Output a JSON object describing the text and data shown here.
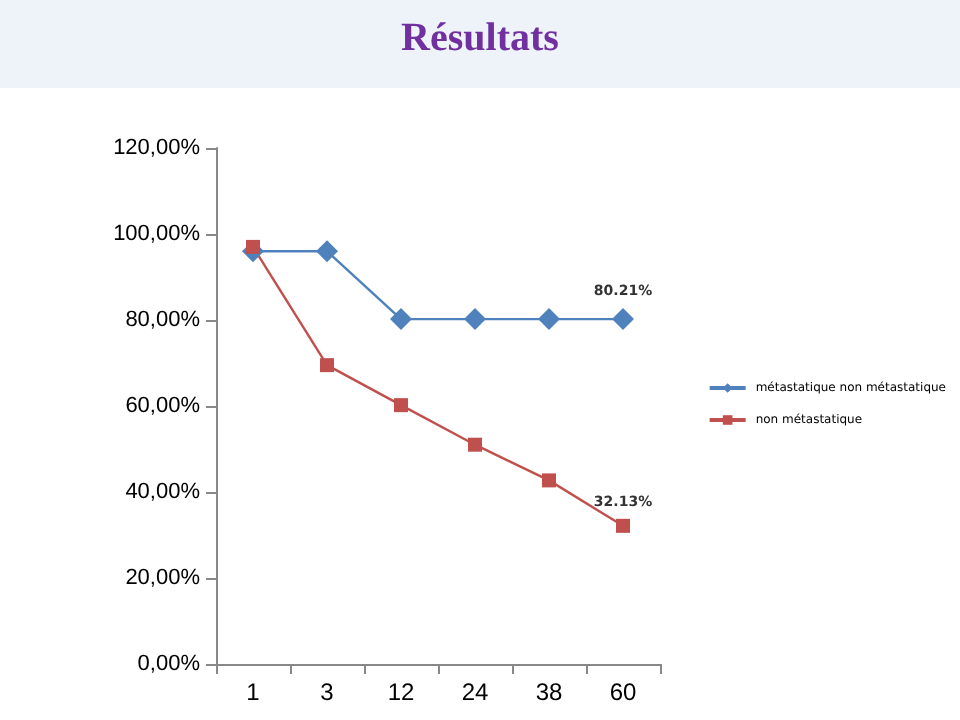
{
  "chart_data": {
    "type": "line",
    "title": "Résultats",
    "categories": [
      "1",
      "3",
      "12",
      "24",
      "38",
      "60"
    ],
    "series": [
      {
        "name": "métastatique non métastatique",
        "color": "#4f81bd",
        "marker": "diamond",
        "values": [
          96,
          96,
          80.21,
          80.21,
          80.21,
          80.21
        ],
        "value_labels": [
          null,
          null,
          null,
          null,
          null,
          "80.21%"
        ]
      },
      {
        "name": "non métastatique",
        "color": "#c0504d",
        "marker": "square",
        "values": [
          97,
          69.5,
          60.2,
          51,
          42.7,
          32.13
        ],
        "value_labels": [
          null,
          null,
          null,
          null,
          null,
          "32.13%"
        ]
      }
    ],
    "ylim": [
      0,
      120
    ],
    "yticks": [
      {
        "value": 0,
        "label": "0,00%"
      },
      {
        "value": 20,
        "label": "20,00%"
      },
      {
        "value": 40,
        "label": "40,00%"
      },
      {
        "value": 60,
        "label": "60,00%"
      },
      {
        "value": 80,
        "label": "80,00%"
      },
      {
        "value": 100,
        "label": "100,00%"
      },
      {
        "value": 120,
        "label": "120,00%"
      }
    ],
    "grid": false,
    "legend": "right"
  }
}
